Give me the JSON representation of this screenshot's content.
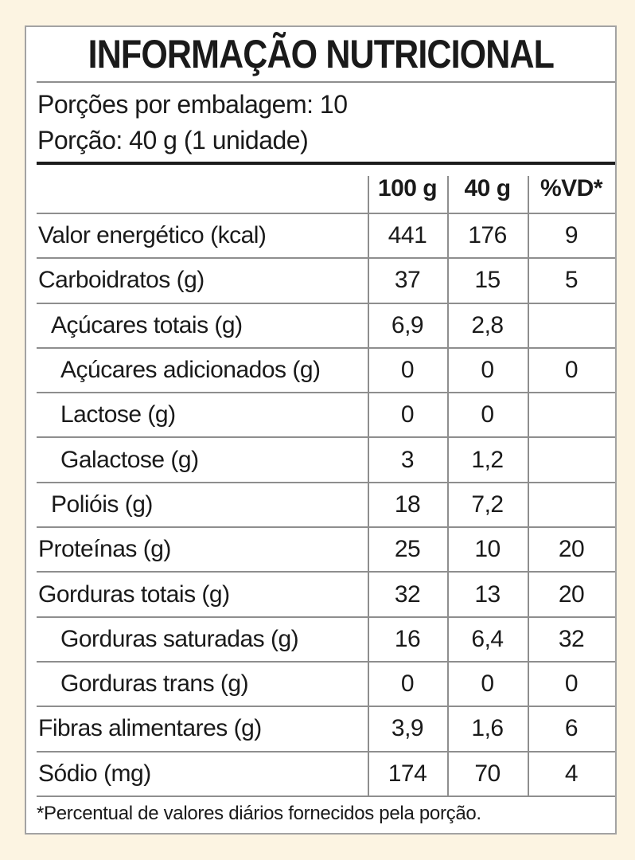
{
  "label": {
    "title": "INFORMAÇÃO NUTRICIONAL",
    "servings_per_package": "Porções por embalagem: 10",
    "serving_size": "Porção: 40 g (1 unidade)",
    "columns": [
      "100 g",
      "40 g",
      "%VD*"
    ],
    "rows": [
      {
        "name": "Valor energético (kcal)",
        "indent": 0,
        "per_100g": "441",
        "per_serving": "176",
        "pct_dv": "9"
      },
      {
        "name": "Carboidratos (g)",
        "indent": 0,
        "per_100g": "37",
        "per_serving": "15",
        "pct_dv": "5"
      },
      {
        "name": "Açúcares totais (g)",
        "indent": 1,
        "per_100g": "6,9",
        "per_serving": "2,8",
        "pct_dv": ""
      },
      {
        "name": "Açúcares adicionados (g)",
        "indent": 2,
        "per_100g": "0",
        "per_serving": "0",
        "pct_dv": "0"
      },
      {
        "name": "Lactose (g)",
        "indent": 2,
        "per_100g": "0",
        "per_serving": "0",
        "pct_dv": ""
      },
      {
        "name": "Galactose (g)",
        "indent": 2,
        "per_100g": "3",
        "per_serving": "1,2",
        "pct_dv": ""
      },
      {
        "name": "Polióis (g)",
        "indent": 1,
        "per_100g": "18",
        "per_serving": "7,2",
        "pct_dv": ""
      },
      {
        "name": "Proteínas (g)",
        "indent": 0,
        "per_100g": "25",
        "per_serving": "10",
        "pct_dv": "20"
      },
      {
        "name": "Gorduras totais (g)",
        "indent": 0,
        "per_100g": "32",
        "per_serving": "13",
        "pct_dv": "20"
      },
      {
        "name": "Gorduras saturadas (g)",
        "indent": 2,
        "per_100g": "16",
        "per_serving": "6,4",
        "pct_dv": "32"
      },
      {
        "name": "Gorduras trans (g)",
        "indent": 2,
        "per_100g": "0",
        "per_serving": "0",
        "pct_dv": "0"
      },
      {
        "name": "Fibras alimentares (g)",
        "indent": 0,
        "per_100g": "3,9",
        "per_serving": "1,6",
        "pct_dv": "6"
      },
      {
        "name": "Sódio (mg)",
        "indent": 0,
        "per_100g": "174",
        "per_serving": "70",
        "pct_dv": "4"
      }
    ],
    "footnote": "*Percentual de valores diários fornecidos pela porção.",
    "colors": {
      "page_background": "#fcf4e2",
      "card_background": "#ffffff",
      "text": "#1a1a1a",
      "rule_gray": "#8e8e8e",
      "rule_black": "#1c1c1c",
      "card_border": "#a3a3a3"
    }
  }
}
